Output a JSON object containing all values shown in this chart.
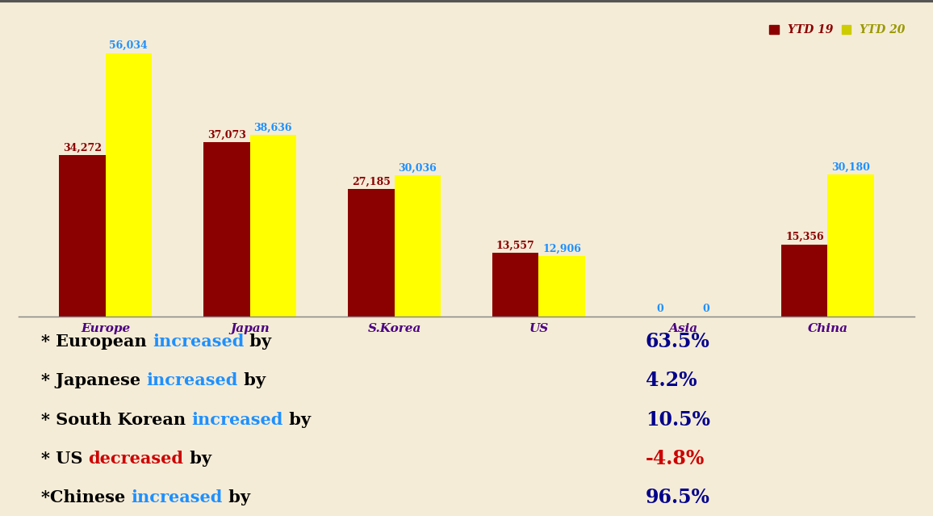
{
  "categories": [
    "Europe",
    "Japan",
    "S.Korea",
    "US",
    "Asia",
    "China"
  ],
  "ytd19": [
    34272,
    37073,
    27185,
    13557,
    0,
    15356
  ],
  "ytd20": [
    56034,
    38636,
    30036,
    12906,
    0,
    30180
  ],
  "bar_color_19": "#8B0000",
  "bar_color_20": "#FFFF00",
  "chart_bg_color": "#F5ECD7",
  "annot_bg_color": "#FFFFFF",
  "label_color_19": "#8B0000",
  "label_color_20": "#1E90FF",
  "label_color_0": "#1E90FF",
  "xlabel_color": "#4B0082",
  "legend_text_color_19": "#8B0000",
  "legend_text_color_20": "#999900",
  "legend_box_color_20": "#CCCC00",
  "annotations": [
    {
      "prefix": "* European ",
      "word": "increased",
      "suffix": " by",
      "pct": "63.5%",
      "pct_color": "#00008B",
      "word_color": "#1E90FF",
      "base_color": "#000000"
    },
    {
      "prefix": "* Japanese ",
      "word": "increased",
      "suffix": " by",
      "pct": "4.2%",
      "pct_color": "#00008B",
      "word_color": "#1E90FF",
      "base_color": "#000000"
    },
    {
      "prefix": "* South Korean ",
      "word": "increased",
      "suffix": " by",
      "pct": "10.5%",
      "pct_color": "#00008B",
      "word_color": "#1E90FF",
      "base_color": "#000000"
    },
    {
      "prefix": "* US ",
      "word": "decreased",
      "suffix": " by",
      "pct": "-4.8%",
      "pct_color": "#CC0000",
      "word_color": "#CC0000",
      "base_color": "#000000"
    },
    {
      "prefix": "*Chinese ",
      "word": "increased",
      "suffix": " by",
      "pct": "96.5%",
      "pct_color": "#00008B",
      "word_color": "#1E90FF",
      "base_color": "#000000"
    }
  ],
  "bar_width": 0.32,
  "ylim": [
    0,
    64000
  ],
  "top_border_color": "#555555",
  "annot_fontsize": 15,
  "pct_fontsize": 17
}
